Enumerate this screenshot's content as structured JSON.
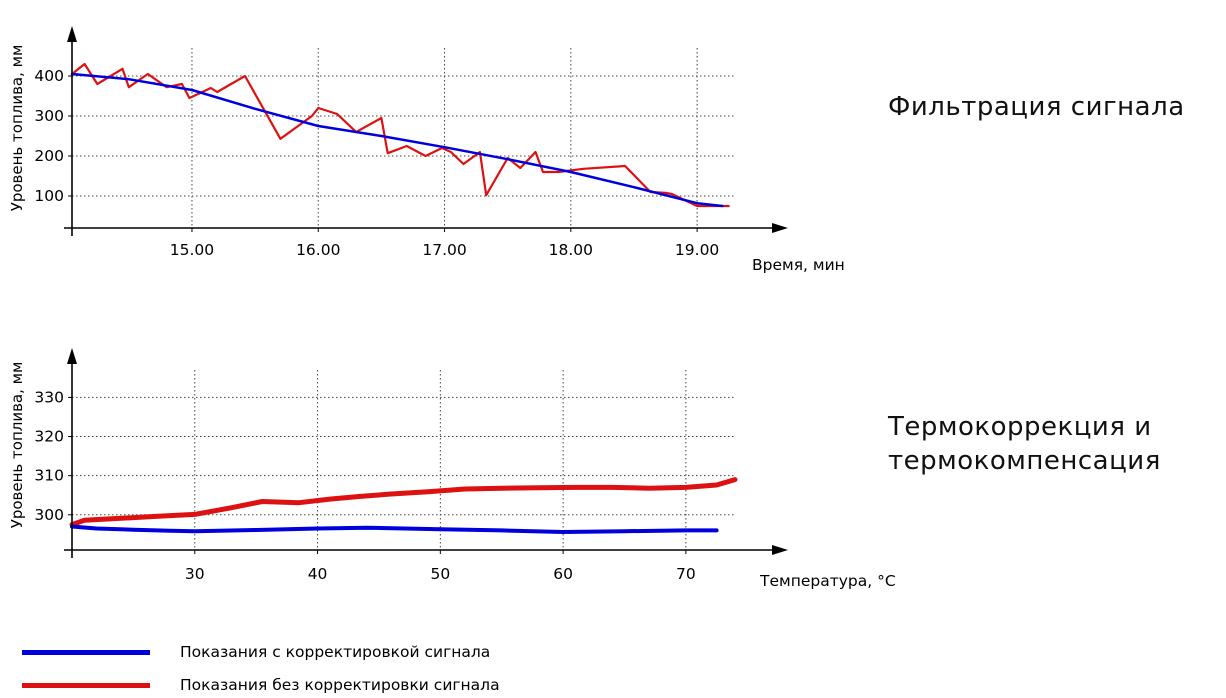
{
  "chart_data": [
    {
      "type": "line",
      "xlabel": "Время, мин",
      "ylabel": "Уровень топлива, мм",
      "xlim": [
        14.05,
        19.3
      ],
      "ylim": [
        20,
        470
      ],
      "x_ticks": [
        "15.00",
        "16.00",
        "17.00",
        "18.00",
        "19.00"
      ],
      "x_tick_values": [
        15,
        16,
        17,
        18,
        19
      ],
      "y_ticks": [
        "100",
        "200",
        "300",
        "400"
      ],
      "y_tick_values": [
        100,
        200,
        300,
        400
      ],
      "grid": true,
      "series": [
        {
          "name": "Показания с корректировкой сигнала",
          "color": "#0000dd",
          "width": 2.5,
          "x": [
            14.05,
            14.5,
            15.0,
            15.5,
            16.0,
            16.5,
            17.0,
            17.5,
            18.0,
            18.5,
            19.0,
            19.2
          ],
          "y": [
            405,
            392,
            365,
            318,
            275,
            250,
            222,
            192,
            160,
            122,
            82,
            75
          ]
        },
        {
          "name": "Показания без корректировки сигнала",
          "color": "#dd1111",
          "width": 2.2,
          "x": [
            14.05,
            14.15,
            14.25,
            14.45,
            14.5,
            14.65,
            14.8,
            14.92,
            14.98,
            15.15,
            15.2,
            15.42,
            15.7,
            15.95,
            16.0,
            16.15,
            16.3,
            16.5,
            16.55,
            16.7,
            16.85,
            16.98,
            17.05,
            17.15,
            17.28,
            17.33,
            17.5,
            17.6,
            17.72,
            17.78,
            17.9,
            18.1,
            18.43,
            18.63,
            18.75,
            18.8,
            19.0,
            19.15,
            19.25
          ],
          "y": [
            405,
            430,
            380,
            418,
            372,
            405,
            372,
            380,
            345,
            370,
            360,
            400,
            243,
            300,
            320,
            305,
            260,
            295,
            207,
            225,
            200,
            220,
            210,
            180,
            210,
            102,
            195,
            170,
            210,
            160,
            160,
            168,
            175,
            110,
            108,
            105,
            75,
            75,
            75
          ]
        }
      ]
    },
    {
      "type": "line",
      "xlabel": "Температура, °C",
      "ylabel": "Уровень топлива, мм",
      "xlim": [
        20,
        74
      ],
      "ylim": [
        291,
        337
      ],
      "x_ticks": [
        "30",
        "40",
        "50",
        "60",
        "70"
      ],
      "x_tick_values": [
        30,
        40,
        50,
        60,
        70
      ],
      "y_ticks": [
        "300",
        "310",
        "320",
        "330"
      ],
      "y_tick_values": [
        300,
        310,
        320,
        330
      ],
      "grid": true,
      "series": [
        {
          "name": "Показания с корректировкой сигнала",
          "color": "#0000dd",
          "width": 4,
          "x": [
            20,
            22,
            25,
            28,
            30,
            35,
            40,
            44,
            50,
            55,
            60,
            65,
            70,
            72.5
          ],
          "y": [
            297,
            296.5,
            296.2,
            295.9,
            295.8,
            296.1,
            296.5,
            296.7,
            296.3,
            296,
            295.6,
            295.8,
            296,
            296
          ]
        },
        {
          "name": "Показания без корректировки сигнала",
          "color": "#dd1111",
          "width": 5,
          "x": [
            20,
            21,
            24,
            27,
            30,
            33,
            35.5,
            38.5,
            41,
            43.5,
            46,
            49,
            52,
            55,
            58,
            61,
            64,
            67,
            70,
            72.5,
            74
          ],
          "y": [
            297.5,
            298.6,
            299.1,
            299.6,
            300.1,
            301.8,
            303.4,
            303.1,
            304,
            304.7,
            305.3,
            305.9,
            306.6,
            306.8,
            306.9,
            307,
            307,
            306.8,
            307,
            307.6,
            309
          ]
        }
      ]
    }
  ],
  "captions": {
    "filter": "Фильтрация сигнала",
    "thermo_line1": "Термокоррекция и",
    "thermo_line2": "термокомпенсация"
  },
  "legend": [
    {
      "label": "Показания с корректировкой сигнала",
      "color": "#0000dd"
    },
    {
      "label": "Показания без корректировки сигнала",
      "color": "#dd1111"
    }
  ]
}
